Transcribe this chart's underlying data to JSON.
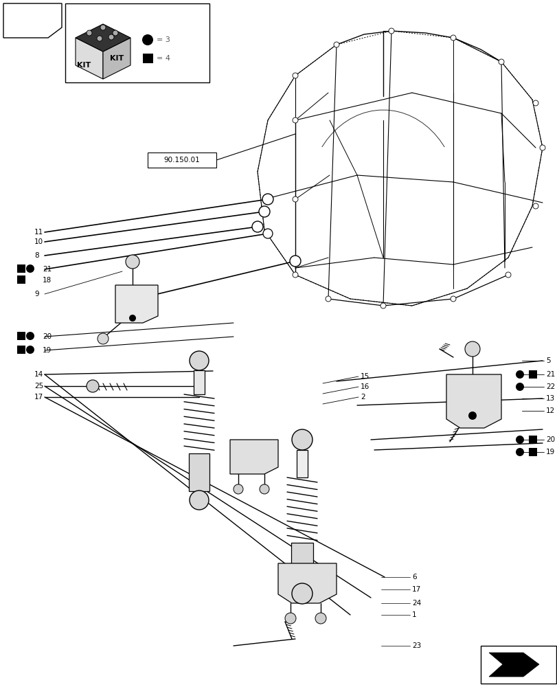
{
  "bg_color": "#ffffff",
  "figsize": [
    8.12,
    10.0
  ],
  "dpi": 100,
  "label_90150": "90.150.01",
  "kit_legend": {
    "circle_label": "= 3",
    "square_label": "= 4"
  }
}
